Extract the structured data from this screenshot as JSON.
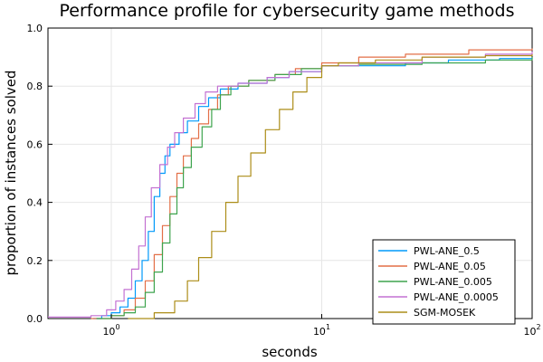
{
  "chart_data": {
    "type": "line",
    "title": "Performance profile for cybersecurity game methods",
    "xlabel": "seconds",
    "ylabel": "proportion of instances solved",
    "xscale": "log",
    "xlim": [
      0.5,
      100
    ],
    "ylim": [
      0,
      1
    ],
    "x_ticks": [
      {
        "value": 1,
        "base": "10",
        "exp": "0"
      },
      {
        "value": 10,
        "base": "10",
        "exp": "1"
      },
      {
        "value": 100,
        "base": "10",
        "exp": "2"
      }
    ],
    "y_ticks": [
      {
        "value": 0,
        "label": "0.0"
      },
      {
        "value": 0.2,
        "label": "0.2"
      },
      {
        "value": 0.4,
        "label": "0.4"
      },
      {
        "value": 0.6,
        "label": "0.6"
      },
      {
        "value": 0.8,
        "label": "0.8"
      },
      {
        "value": 1.0,
        "label": "1.0"
      }
    ],
    "grid": true,
    "legend_position": "bottom-right",
    "series": [
      {
        "name": "PWL-ANE_0.5",
        "color": "#009AFA",
        "points": [
          [
            0.82,
            0
          ],
          [
            0.9,
            0.01
          ],
          [
            1.0,
            0.02
          ],
          [
            1.1,
            0.04
          ],
          [
            1.2,
            0.07
          ],
          [
            1.3,
            0.13
          ],
          [
            1.4,
            0.2
          ],
          [
            1.5,
            0.3
          ],
          [
            1.6,
            0.42
          ],
          [
            1.7,
            0.5
          ],
          [
            1.8,
            0.56
          ],
          [
            1.9,
            0.6
          ],
          [
            2.1,
            0.64
          ],
          [
            2.3,
            0.68
          ],
          [
            2.6,
            0.73
          ],
          [
            2.9,
            0.76
          ],
          [
            3.3,
            0.79
          ],
          [
            4.0,
            0.81
          ],
          [
            5.5,
            0.83
          ],
          [
            7.0,
            0.85
          ],
          [
            10,
            0.87
          ],
          [
            15,
            0.87
          ],
          [
            25,
            0.88
          ],
          [
            40,
            0.89
          ],
          [
            70,
            0.895
          ],
          [
            100,
            0.9
          ]
        ]
      },
      {
        "name": "PWL-ANE_0.05",
        "color": "#E36F47",
        "points": [
          [
            0.8,
            0
          ],
          [
            1.0,
            0.01
          ],
          [
            1.15,
            0.03
          ],
          [
            1.3,
            0.07
          ],
          [
            1.45,
            0.13
          ],
          [
            1.6,
            0.22
          ],
          [
            1.75,
            0.32
          ],
          [
            1.9,
            0.42
          ],
          [
            2.05,
            0.5
          ],
          [
            2.2,
            0.56
          ],
          [
            2.4,
            0.62
          ],
          [
            2.6,
            0.67
          ],
          [
            2.9,
            0.72
          ],
          [
            3.2,
            0.77
          ],
          [
            3.6,
            0.8
          ],
          [
            4.5,
            0.82
          ],
          [
            6.0,
            0.84
          ],
          [
            7.5,
            0.86
          ],
          [
            10,
            0.88
          ],
          [
            15,
            0.9
          ],
          [
            25,
            0.91
          ],
          [
            50,
            0.925
          ],
          [
            100,
            0.93
          ]
        ]
      },
      {
        "name": "PWL-ANE_0.005",
        "color": "#3EA44E",
        "points": [
          [
            0.85,
            0
          ],
          [
            1.0,
            0.01
          ],
          [
            1.15,
            0.02
          ],
          [
            1.3,
            0.04
          ],
          [
            1.45,
            0.09
          ],
          [
            1.6,
            0.16
          ],
          [
            1.75,
            0.26
          ],
          [
            1.9,
            0.36
          ],
          [
            2.05,
            0.45
          ],
          [
            2.2,
            0.52
          ],
          [
            2.4,
            0.59
          ],
          [
            2.7,
            0.66
          ],
          [
            3.0,
            0.72
          ],
          [
            3.3,
            0.77
          ],
          [
            3.7,
            0.8
          ],
          [
            4.5,
            0.82
          ],
          [
            6.0,
            0.84
          ],
          [
            8.0,
            0.86
          ],
          [
            10,
            0.87
          ],
          [
            15,
            0.875
          ],
          [
            30,
            0.88
          ],
          [
            60,
            0.89
          ],
          [
            100,
            0.9
          ]
        ]
      },
      {
        "name": "PWL-ANE_0.0005",
        "color": "#C371D2",
        "points": [
          [
            0.5,
            0.005
          ],
          [
            0.8,
            0.01
          ],
          [
            0.95,
            0.03
          ],
          [
            1.05,
            0.06
          ],
          [
            1.15,
            0.1
          ],
          [
            1.25,
            0.17
          ],
          [
            1.35,
            0.25
          ],
          [
            1.45,
            0.35
          ],
          [
            1.55,
            0.45
          ],
          [
            1.7,
            0.53
          ],
          [
            1.85,
            0.59
          ],
          [
            2.0,
            0.64
          ],
          [
            2.2,
            0.69
          ],
          [
            2.5,
            0.74
          ],
          [
            2.8,
            0.78
          ],
          [
            3.2,
            0.8
          ],
          [
            4.0,
            0.81
          ],
          [
            5.5,
            0.83
          ],
          [
            7.0,
            0.85
          ],
          [
            10,
            0.87
          ],
          [
            15,
            0.88
          ],
          [
            30,
            0.9
          ],
          [
            60,
            0.91
          ],
          [
            100,
            0.92
          ]
        ]
      },
      {
        "name": "SGM-MOSEK",
        "color": "#AC8D18",
        "points": [
          [
            1.2,
            0
          ],
          [
            1.6,
            0.02
          ],
          [
            2.0,
            0.06
          ],
          [
            2.3,
            0.13
          ],
          [
            2.6,
            0.21
          ],
          [
            3.0,
            0.3
          ],
          [
            3.5,
            0.4
          ],
          [
            4.0,
            0.49
          ],
          [
            4.6,
            0.57
          ],
          [
            5.4,
            0.65
          ],
          [
            6.3,
            0.72
          ],
          [
            7.3,
            0.78
          ],
          [
            8.5,
            0.83
          ],
          [
            10,
            0.87
          ],
          [
            12,
            0.88
          ],
          [
            18,
            0.89
          ],
          [
            30,
            0.9
          ],
          [
            60,
            0.905
          ],
          [
            100,
            0.91
          ]
        ]
      }
    ]
  }
}
